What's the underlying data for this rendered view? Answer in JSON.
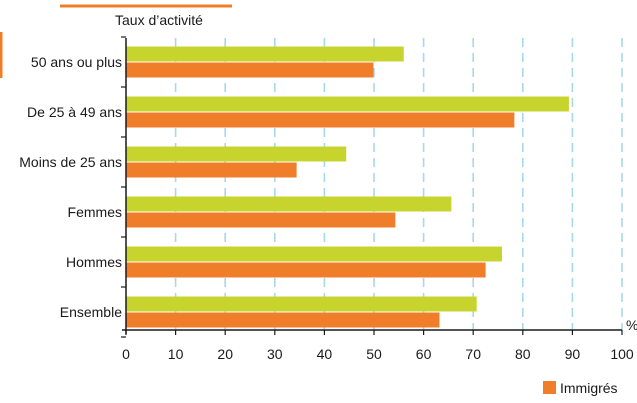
{
  "chart_data": {
    "type": "bar",
    "orientation": "horizontal",
    "title": "Taux d’activité",
    "unit": "%",
    "categories": [
      "Ensemble",
      "Hommes",
      "Femmes",
      "Moins de 25 ans",
      "De 25 à 49 ans",
      "50 ans ou plus"
    ],
    "series": [
      {
        "name": "",
        "color": "#c8d42e",
        "values": [
          70.7,
          75.8,
          65.6,
          44.4,
          89.3,
          56.0
        ]
      },
      {
        "name": "Immigrés",
        "color": "#f07d2a",
        "values": [
          63.2,
          72.5,
          54.3,
          34.4,
          78.3,
          49.9
        ]
      }
    ],
    "xlim": [
      0,
      100
    ],
    "xticks": [
      0,
      10,
      20,
      30,
      40,
      50,
      60,
      70,
      80,
      90,
      100
    ],
    "grid": "vertical dashed",
    "legend": {
      "position": "bottom-right",
      "visible_entries": [
        "Immigrés"
      ]
    }
  },
  "colors": {
    "accent": "#f07d2a",
    "grid": "#a8d8ec",
    "axis": "#1a1a1a"
  }
}
